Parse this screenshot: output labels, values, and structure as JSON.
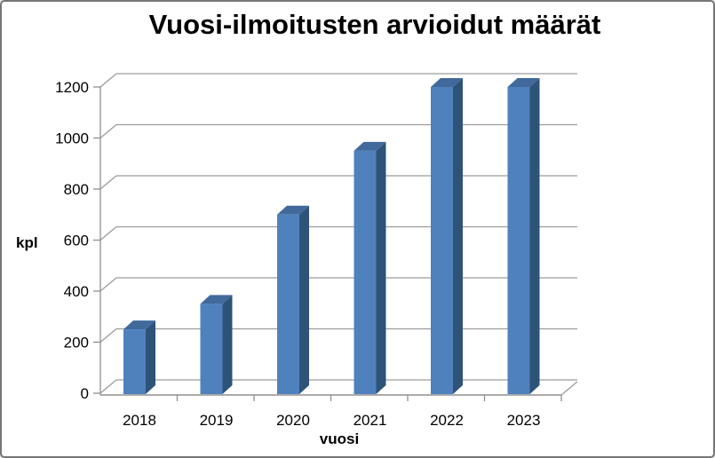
{
  "window": {
    "background": "#ffffff",
    "border_color": "#767676"
  },
  "chart_data": {
    "type": "bar",
    "style": "3d-column",
    "title": "Vuosi-ilmoitusten arvioidut määrät",
    "xlabel": "vuosi",
    "ylabel": "kpl",
    "categories": [
      "2018",
      "2019",
      "2020",
      "2021",
      "2022",
      "2023"
    ],
    "series": [
      {
        "name": "kpl",
        "values": [
          250,
          350,
          700,
          950,
          1200,
          1200
        ]
      }
    ],
    "ylim": [
      0,
      1200
    ],
    "yticks": [
      0,
      200,
      400,
      600,
      800,
      1000,
      1200
    ],
    "grid": true,
    "legend": "none",
    "colors": {
      "bar_front": "#4F81BD",
      "bar_side": "#2E5379",
      "bar_top": "#41699B",
      "gridline": "#9C9C9C",
      "axis": "#8F8F8F",
      "text": "#000000"
    }
  }
}
